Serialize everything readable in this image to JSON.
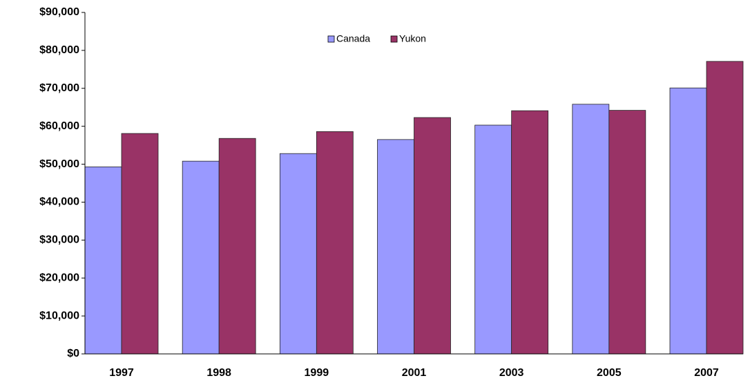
{
  "chart_data": {
    "type": "bar",
    "categories": [
      "1997",
      "1998",
      "1999",
      "2001",
      "2003",
      "2005",
      "2007"
    ],
    "series": [
      {
        "name": "Canada",
        "color": "#9999ff",
        "values": [
          49300,
          50800,
          52800,
          56500,
          60300,
          65800,
          70100
        ]
      },
      {
        "name": "Yukon",
        "color": "#993366",
        "values": [
          58100,
          56800,
          58600,
          62300,
          64100,
          64200,
          77100
        ]
      }
    ],
    "ylim": [
      0,
      90000
    ],
    "yticks": [
      {
        "value": 0,
        "label": "$0"
      },
      {
        "value": 10000,
        "label": "$10,000"
      },
      {
        "value": 20000,
        "label": "$20,000"
      },
      {
        "value": 30000,
        "label": "$30,000"
      },
      {
        "value": 40000,
        "label": "$40,000"
      },
      {
        "value": 50000,
        "label": "$50,000"
      },
      {
        "value": 60000,
        "label": "$60,000"
      },
      {
        "value": 70000,
        "label": "$70,000"
      },
      {
        "value": 80000,
        "label": "$80,000"
      },
      {
        "value": 90000,
        "label": "$90,000"
      }
    ],
    "legend": "top"
  }
}
